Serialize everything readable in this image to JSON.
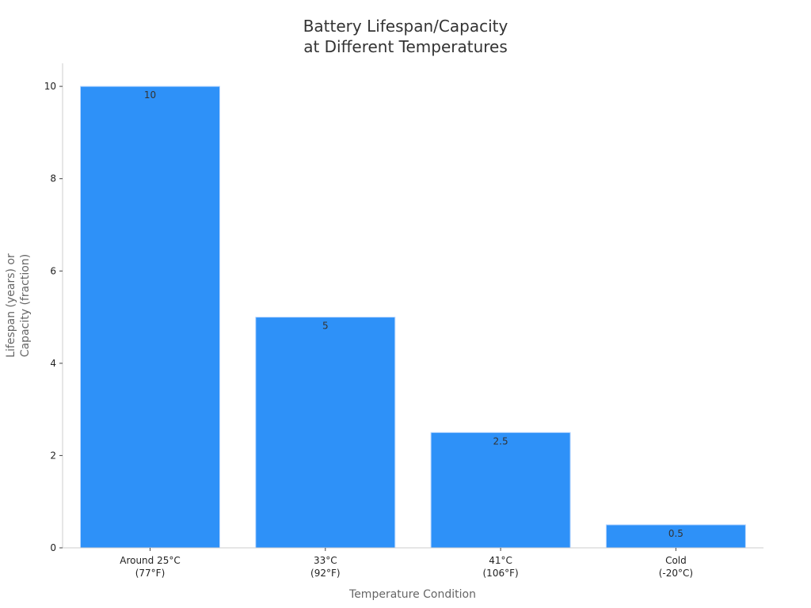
{
  "chart_data": {
    "type": "bar",
    "title_lines": [
      "Battery Lifespan/Capacity",
      "at Different Temperatures"
    ],
    "xlabel": "Temperature Condition",
    "ylabel_lines": [
      "Lifespan (years) or",
      "Capacity (fraction)"
    ],
    "categories": [
      [
        "Around 25°C",
        "(77°F)"
      ],
      [
        "33°C",
        "(92°F)"
      ],
      [
        "41°C",
        "(106°F)"
      ],
      [
        "Cold",
        "(-20°C)"
      ]
    ],
    "values": [
      10,
      5,
      2.5,
      0.5
    ],
    "data_labels": [
      "10",
      "5",
      "2.5",
      "0.5"
    ],
    "ylim": [
      0,
      10.5
    ],
    "yticks": [
      0,
      2,
      4,
      6,
      8,
      10
    ],
    "grid": false,
    "bar_color": "#2e91f8"
  }
}
